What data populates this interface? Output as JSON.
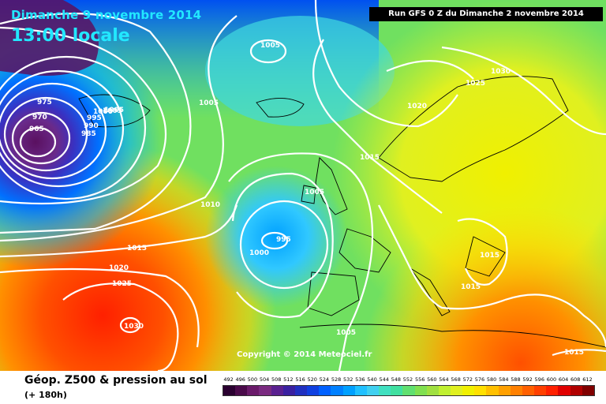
{
  "header": {
    "date": "Dimanche 9 novembre 2014",
    "hour": "13:00 locale",
    "run": "Run GFS 0 Z du Dimanche 2 novembre 2014"
  },
  "footer": {
    "field_title": "Géop. Z500 & pression au sol",
    "lead_time": "(+ 180h)",
    "copyright": "Copyright © 2014 Meteociel.fr"
  },
  "scale": {
    "values": [
      "492",
      "496",
      "500",
      "504",
      "508",
      "512",
      "516",
      "520",
      "524",
      "528",
      "532",
      "536",
      "540",
      "544",
      "548",
      "552",
      "556",
      "560",
      "564",
      "568",
      "572",
      "576",
      "580",
      "584",
      "588",
      "592",
      "596",
      "600",
      "604",
      "608",
      "612"
    ],
    "colors": [
      "#2a0030",
      "#4a0a4a",
      "#6a1a6a",
      "#7a2a80",
      "#5a2090",
      "#3a20a0",
      "#2030c0",
      "#1040e0",
      "#0060ff",
      "#0080ff",
      "#00a0ff",
      "#20c0ff",
      "#40d0f0",
      "#40e0c0",
      "#40e0a0",
      "#60e070",
      "#80e050",
      "#a0e040",
      "#c0f030",
      "#e0f020",
      "#f0f000",
      "#ffe000",
      "#ffc000",
      "#ffa000",
      "#ff8000",
      "#ff6000",
      "#ff4000",
      "#ff2000",
      "#e00000",
      "#b00000",
      "#800000"
    ]
  },
  "isobars": {
    "labels": [
      "1005",
      "1005",
      "1005",
      "1030",
      "1025",
      "1020",
      "1015",
      "1005",
      "1010",
      "995",
      "1000",
      "1015",
      "1015",
      "1020",
      "1025",
      "1030",
      "1015",
      "1005",
      "1015",
      "975",
      "970",
      "965",
      "985",
      "990",
      "995",
      "1000",
      "1005"
    ]
  },
  "colors": {
    "title_text": "#22e8ff",
    "isobar": "#ffffff",
    "coastline": "#000000"
  }
}
